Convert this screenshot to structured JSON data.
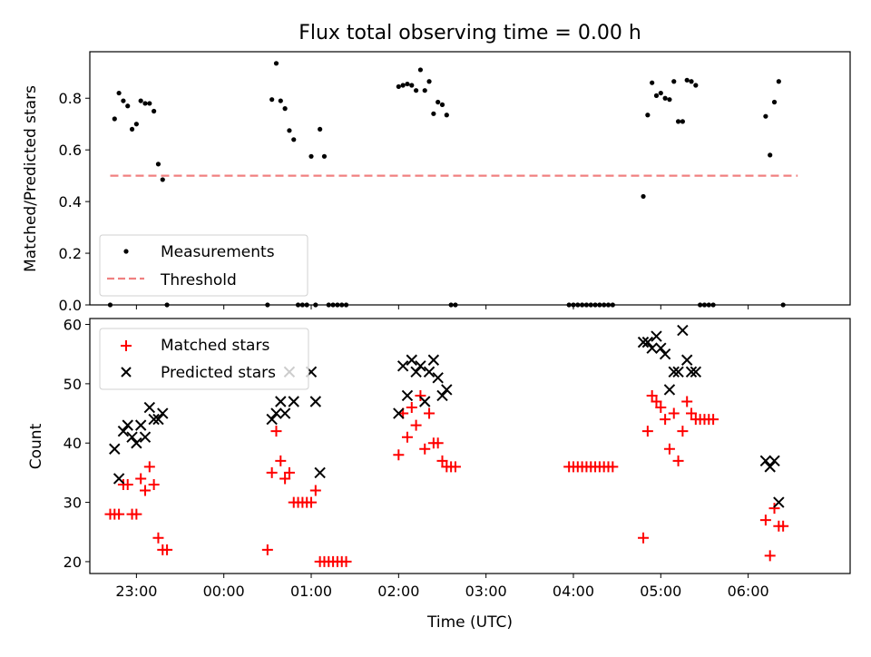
{
  "title": "Flux total observing time = 0.00 h",
  "colors": {
    "measurement": "#000000",
    "threshold": "#f08080",
    "matched": "#ff0000",
    "predicted": "#000000"
  },
  "chart_data": [
    {
      "type": "scatter",
      "ylabel": "Matched/Predicted stars",
      "ylim": [
        0,
        0.98
      ],
      "yticks": [
        "0.0",
        "0.2",
        "0.4",
        "0.6",
        "0.8"
      ],
      "grid": false,
      "legend_position": "lower-left",
      "legend": [
        "Measurements",
        "Threshold"
      ],
      "xlim": [
        "22:28",
        "07:10"
      ],
      "series": [
        {
          "name": "Measurements",
          "marker": "dot",
          "points": [
            [
              "22:42",
              0.0
            ],
            [
              "22:45",
              0.72
            ],
            [
              "22:48",
              0.82
            ],
            [
              "22:51",
              0.79
            ],
            [
              "22:54",
              0.77
            ],
            [
              "22:57",
              0.68
            ],
            [
              "23:00",
              0.7
            ],
            [
              "23:03",
              0.79
            ],
            [
              "23:06",
              0.78
            ],
            [
              "23:09",
              0.78
            ],
            [
              "23:12",
              0.75
            ],
            [
              "23:15",
              0.545
            ],
            [
              "23:18",
              0.485
            ],
            [
              "23:21",
              0.0
            ],
            [
              "00:30",
              0.0
            ],
            [
              "00:33",
              0.795
            ],
            [
              "00:36",
              0.935
            ],
            [
              "00:39",
              0.79
            ],
            [
              "00:42",
              0.76
            ],
            [
              "00:45",
              0.675
            ],
            [
              "00:48",
              0.64
            ],
            [
              "00:51",
              0.0
            ],
            [
              "00:54",
              0.0
            ],
            [
              "00:57",
              0.0
            ],
            [
              "01:00",
              0.575
            ],
            [
              "01:03",
              0.0
            ],
            [
              "01:06",
              0.68
            ],
            [
              "01:09",
              0.575
            ],
            [
              "01:12",
              0.0
            ],
            [
              "01:15",
              0.0
            ],
            [
              "01:18",
              0.0
            ],
            [
              "01:21",
              0.0
            ],
            [
              "01:24",
              0.0
            ],
            [
              "02:00",
              0.845
            ],
            [
              "02:03",
              0.85
            ],
            [
              "02:06",
              0.855
            ],
            [
              "02:09",
              0.85
            ],
            [
              "02:12",
              0.83
            ],
            [
              "02:15",
              0.91
            ],
            [
              "02:18",
              0.83
            ],
            [
              "02:21",
              0.865
            ],
            [
              "02:24",
              0.74
            ],
            [
              "02:27",
              0.785
            ],
            [
              "02:30",
              0.775
            ],
            [
              "02:33",
              0.735
            ],
            [
              "02:36",
              0.0
            ],
            [
              "02:39",
              0.0
            ],
            [
              "03:57",
              0.0
            ],
            [
              "04:00",
              0.0
            ],
            [
              "04:03",
              0.0
            ],
            [
              "04:06",
              0.0
            ],
            [
              "04:09",
              0.0
            ],
            [
              "04:12",
              0.0
            ],
            [
              "04:15",
              0.0
            ],
            [
              "04:18",
              0.0
            ],
            [
              "04:21",
              0.0
            ],
            [
              "04:24",
              0.0
            ],
            [
              "04:27",
              0.0
            ],
            [
              "04:48",
              0.42
            ],
            [
              "04:51",
              0.735
            ],
            [
              "04:54",
              0.86
            ],
            [
              "04:57",
              0.81
            ],
            [
              "05:00",
              0.82
            ],
            [
              "05:03",
              0.8
            ],
            [
              "05:06",
              0.795
            ],
            [
              "05:09",
              0.865
            ],
            [
              "05:12",
              0.71
            ],
            [
              "05:15",
              0.71
            ],
            [
              "05:18",
              0.87
            ],
            [
              "05:21",
              0.865
            ],
            [
              "05:24",
              0.85
            ],
            [
              "05:27",
              0.0
            ],
            [
              "05:30",
              0.0
            ],
            [
              "05:33",
              0.0
            ],
            [
              "05:36",
              0.0
            ],
            [
              "06:12",
              0.73
            ],
            [
              "06:15",
              0.58
            ],
            [
              "06:18",
              0.785
            ],
            [
              "06:21",
              0.865
            ],
            [
              "06:24",
              0.0
            ]
          ]
        },
        {
          "name": "Threshold",
          "style": "dashed",
          "points": [
            [
              "22:42",
              0.5
            ],
            [
              "06:34",
              0.5
            ]
          ]
        }
      ]
    },
    {
      "type": "scatter",
      "xlabel": "Time (UTC)",
      "ylabel": "Count",
      "ylim": [
        18,
        61
      ],
      "yticks": [
        "20",
        "30",
        "40",
        "50",
        "60"
      ],
      "xticks": [
        "23:00",
        "00:00",
        "01:00",
        "02:00",
        "03:00",
        "04:00",
        "05:00",
        "06:00"
      ],
      "grid": false,
      "legend_position": "top-left",
      "legend": [
        "Matched stars",
        "Predicted stars"
      ],
      "series": [
        {
          "name": "Matched stars",
          "marker": "plus",
          "points": [
            [
              "22:42",
              28
            ],
            [
              "22:45",
              28
            ],
            [
              "22:48",
              28
            ],
            [
              "22:51",
              33
            ],
            [
              "22:54",
              33
            ],
            [
              "22:57",
              28
            ],
            [
              "23:00",
              28
            ],
            [
              "23:03",
              34
            ],
            [
              "23:06",
              32
            ],
            [
              "23:09",
              36
            ],
            [
              "23:12",
              33
            ],
            [
              "23:15",
              24
            ],
            [
              "23:18",
              22
            ],
            [
              "23:21",
              22
            ],
            [
              "00:30",
              22
            ],
            [
              "00:33",
              35
            ],
            [
              "00:36",
              42
            ],
            [
              "00:39",
              37
            ],
            [
              "00:42",
              34
            ],
            [
              "00:45",
              35
            ],
            [
              "00:48",
              30
            ],
            [
              "00:51",
              30
            ],
            [
              "00:54",
              30
            ],
            [
              "00:57",
              30
            ],
            [
              "01:00",
              30
            ],
            [
              "01:03",
              32
            ],
            [
              "01:06",
              20
            ],
            [
              "01:09",
              20
            ],
            [
              "01:12",
              20
            ],
            [
              "01:15",
              20
            ],
            [
              "01:18",
              20
            ],
            [
              "01:21",
              20
            ],
            [
              "01:24",
              20
            ],
            [
              "02:00",
              38
            ],
            [
              "02:03",
              45
            ],
            [
              "02:06",
              41
            ],
            [
              "02:09",
              46
            ],
            [
              "02:12",
              43
            ],
            [
              "02:15",
              48
            ],
            [
              "02:18",
              39
            ],
            [
              "02:21",
              45
            ],
            [
              "02:24",
              40
            ],
            [
              "02:27",
              40
            ],
            [
              "02:30",
              37
            ],
            [
              "02:33",
              36
            ],
            [
              "02:36",
              36
            ],
            [
              "02:39",
              36
            ],
            [
              "03:57",
              36
            ],
            [
              "04:00",
              36
            ],
            [
              "04:03",
              36
            ],
            [
              "04:06",
              36
            ],
            [
              "04:09",
              36
            ],
            [
              "04:12",
              36
            ],
            [
              "04:15",
              36
            ],
            [
              "04:18",
              36
            ],
            [
              "04:21",
              36
            ],
            [
              "04:24",
              36
            ],
            [
              "04:27",
              36
            ],
            [
              "04:48",
              24
            ],
            [
              "04:51",
              42
            ],
            [
              "04:54",
              48
            ],
            [
              "04:57",
              47
            ],
            [
              "05:00",
              46
            ],
            [
              "05:03",
              44
            ],
            [
              "05:06",
              39
            ],
            [
              "05:09",
              45
            ],
            [
              "05:12",
              37
            ],
            [
              "05:15",
              42
            ],
            [
              "05:18",
              47
            ],
            [
              "05:21",
              45
            ],
            [
              "05:24",
              44
            ],
            [
              "05:27",
              44
            ],
            [
              "05:30",
              44
            ],
            [
              "05:33",
              44
            ],
            [
              "05:36",
              44
            ],
            [
              "06:12",
              27
            ],
            [
              "06:15",
              21
            ],
            [
              "06:18",
              29
            ],
            [
              "06:21",
              26
            ],
            [
              "06:24",
              26
            ]
          ]
        },
        {
          "name": "Predicted stars",
          "marker": "x",
          "points": [
            [
              "22:45",
              39
            ],
            [
              "22:48",
              34
            ],
            [
              "22:51",
              42
            ],
            [
              "22:54",
              43
            ],
            [
              "22:57",
              41
            ],
            [
              "23:00",
              40
            ],
            [
              "23:03",
              43
            ],
            [
              "23:06",
              41
            ],
            [
              "23:09",
              46
            ],
            [
              "23:12",
              44
            ],
            [
              "23:15",
              44
            ],
            [
              "23:18",
              45
            ],
            [
              "00:33",
              44
            ],
            [
              "00:36",
              45
            ],
            [
              "00:39",
              47
            ],
            [
              "00:42",
              45
            ],
            [
              "00:45",
              52
            ],
            [
              "00:48",
              47
            ],
            [
              "01:00",
              52
            ],
            [
              "01:03",
              47
            ],
            [
              "01:06",
              35
            ],
            [
              "02:00",
              45
            ],
            [
              "02:03",
              53
            ],
            [
              "02:06",
              48
            ],
            [
              "02:09",
              54
            ],
            [
              "02:12",
              52
            ],
            [
              "02:15",
              53
            ],
            [
              "02:18",
              47
            ],
            [
              "02:21",
              52
            ],
            [
              "02:24",
              54
            ],
            [
              "02:27",
              51
            ],
            [
              "02:30",
              48
            ],
            [
              "02:33",
              49
            ],
            [
              "04:48",
              57
            ],
            [
              "04:51",
              57
            ],
            [
              "04:54",
              56
            ],
            [
              "04:57",
              58
            ],
            [
              "05:00",
              56
            ],
            [
              "05:03",
              55
            ],
            [
              "05:06",
              49
            ],
            [
              "05:09",
              52
            ],
            [
              "05:12",
              52
            ],
            [
              "05:15",
              59
            ],
            [
              "05:18",
              54
            ],
            [
              "05:21",
              52
            ],
            [
              "05:24",
              52
            ],
            [
              "06:12",
              37
            ],
            [
              "06:15",
              36
            ],
            [
              "06:18",
              37
            ],
            [
              "06:21",
              30
            ]
          ]
        }
      ]
    }
  ]
}
